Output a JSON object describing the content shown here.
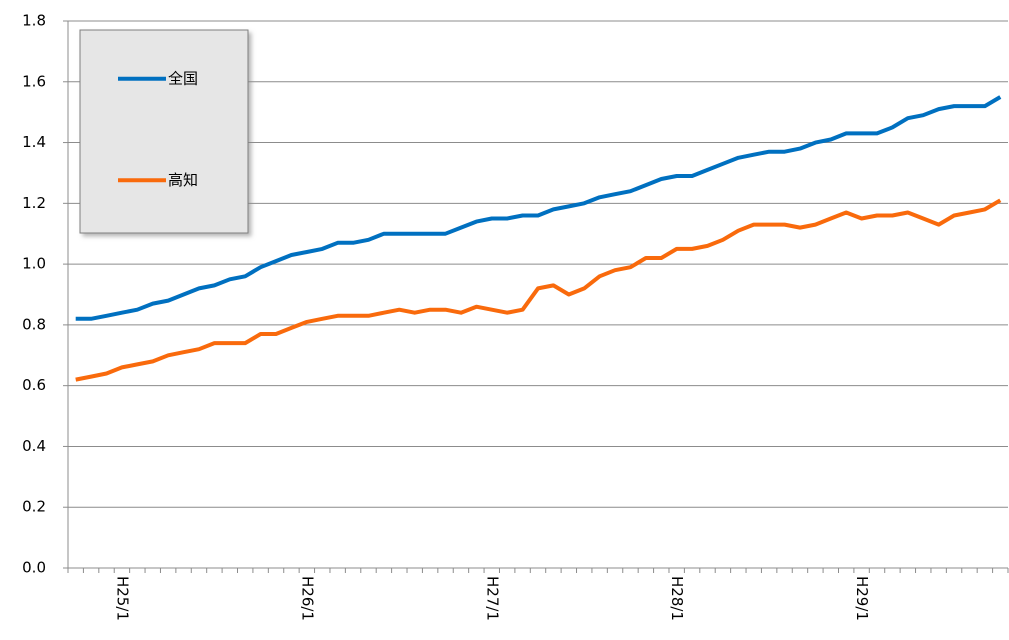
{
  "chart_data": {
    "type": "line",
    "categories": [
      null,
      null,
      null,
      "H25/1",
      null,
      null,
      null,
      null,
      null,
      null,
      null,
      null,
      null,
      null,
      null,
      "H26/1",
      null,
      null,
      null,
      null,
      null,
      null,
      null,
      null,
      null,
      null,
      null,
      "H27/1",
      null,
      null,
      null,
      null,
      null,
      null,
      null,
      null,
      null,
      null,
      null,
      "H28/1",
      null,
      null,
      null,
      null,
      null,
      null,
      null,
      null,
      null,
      null,
      null,
      "H29/1",
      null,
      null,
      null,
      null,
      null,
      null,
      null,
      null,
      null
    ],
    "series": [
      {
        "name": "全国",
        "color": "#0070c0",
        "values": [
          0.82,
          0.82,
          0.83,
          0.84,
          0.85,
          0.87,
          0.88,
          0.9,
          0.92,
          0.93,
          0.95,
          0.96,
          0.99,
          1.01,
          1.03,
          1.04,
          1.05,
          1.07,
          1.07,
          1.08,
          1.1,
          1.1,
          1.1,
          1.1,
          1.1,
          1.12,
          1.14,
          1.15,
          1.15,
          1.16,
          1.16,
          1.18,
          1.19,
          1.2,
          1.22,
          1.23,
          1.24,
          1.26,
          1.28,
          1.29,
          1.29,
          1.31,
          1.33,
          1.35,
          1.36,
          1.37,
          1.37,
          1.38,
          1.4,
          1.41,
          1.43,
          1.43,
          1.43,
          1.45,
          1.48,
          1.49,
          1.51,
          1.52,
          1.52,
          1.52,
          1.55
        ]
      },
      {
        "name": "高知",
        "color": "#f96a0c",
        "values": [
          0.62,
          0.63,
          0.64,
          0.66,
          0.67,
          0.68,
          0.7,
          0.71,
          0.72,
          0.74,
          0.74,
          0.74,
          0.77,
          0.77,
          0.79,
          0.81,
          0.82,
          0.83,
          0.83,
          0.83,
          0.84,
          0.85,
          0.84,
          0.85,
          0.85,
          0.84,
          0.86,
          0.85,
          0.84,
          0.85,
          0.92,
          0.93,
          0.9,
          0.92,
          0.96,
          0.98,
          0.99,
          1.02,
          1.02,
          1.05,
          1.05,
          1.06,
          1.08,
          1.11,
          1.13,
          1.13,
          1.13,
          1.12,
          1.13,
          1.15,
          1.17,
          1.15,
          1.16,
          1.16,
          1.17,
          1.15,
          1.13,
          1.16,
          1.17,
          1.18,
          1.21
        ]
      }
    ],
    "ylim": [
      0,
      1.8
    ],
    "yticks": [
      {
        "value": 0,
        "label": "0.0"
      },
      0.2,
      0.4,
      0.6,
      0.8,
      {
        "value": 1,
        "label": "1.0"
      },
      1.2,
      1.4,
      1.6,
      1.8
    ],
    "grid": true,
    "legend": "upper left"
  }
}
